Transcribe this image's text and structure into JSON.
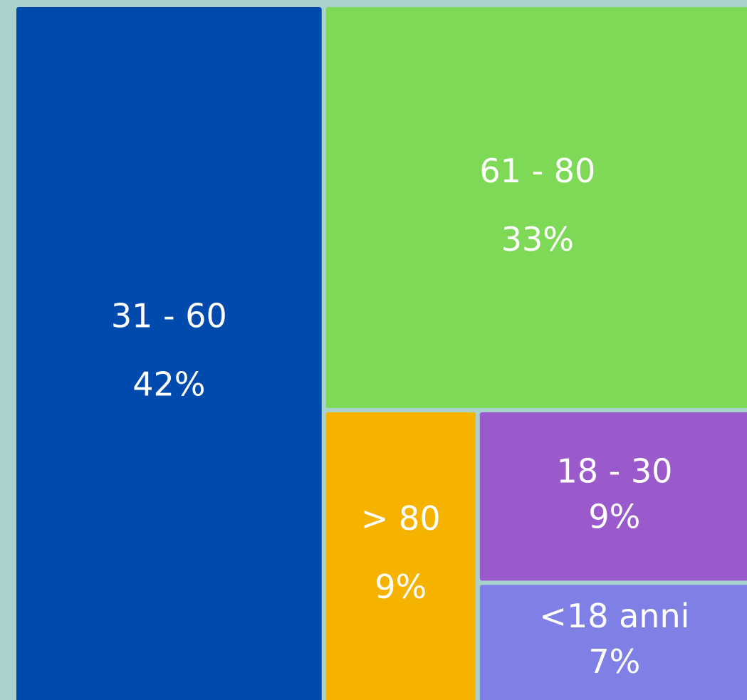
{
  "chart_data": {
    "type": "treemap",
    "categories": [
      "31 - 60",
      "61 - 80",
      "> 80",
      "18 - 30",
      "<18 anni"
    ],
    "values": [
      42,
      33,
      9,
      9,
      7
    ],
    "value_labels": [
      "42%",
      "33%",
      "9%",
      "9%",
      "7%"
    ],
    "colors": [
      "#004aad",
      "#7ed957",
      "#f5b300",
      "#9b5acb",
      "#7f80e6"
    ]
  }
}
